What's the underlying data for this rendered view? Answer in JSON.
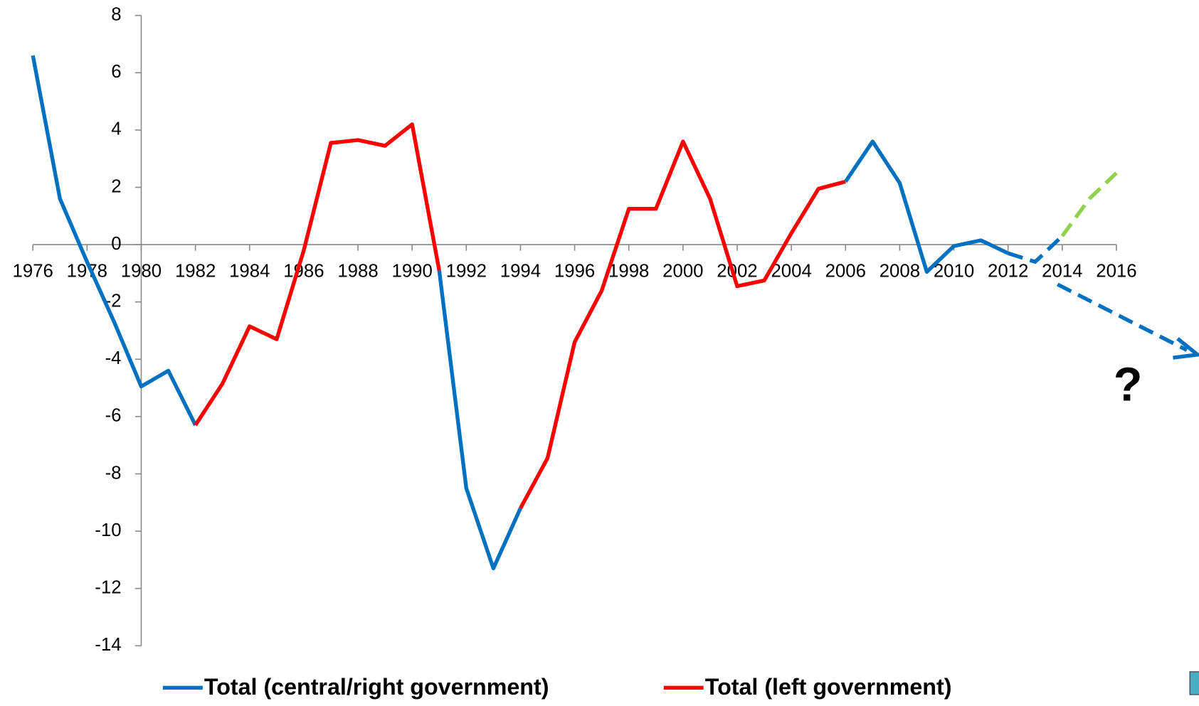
{
  "chart_data": {
    "type": "line",
    "x": [
      1976,
      1977,
      1978,
      1979,
      1980,
      1981,
      1982,
      1983,
      1984,
      1985,
      1986,
      1987,
      1988,
      1989,
      1990,
      1991,
      1992,
      1993,
      1994,
      1995,
      1996,
      1997,
      1998,
      1999,
      2000,
      2001,
      2002,
      2003,
      2004,
      2005,
      2006,
      2007,
      2008,
      2009,
      2010,
      2011,
      2012,
      2013,
      2014,
      2015,
      2016
    ],
    "series": [
      {
        "name": "Total (central/right government)",
        "color": "#0070c0",
        "values": [
          6.6,
          1.6,
          -0.6,
          -2.7,
          -4.95,
          -4.4,
          -6.3,
          null,
          null,
          null,
          null,
          null,
          null,
          null,
          null,
          -0.9,
          -8.5,
          -11.3,
          -9.2,
          null,
          null,
          null,
          null,
          null,
          null,
          null,
          null,
          null,
          null,
          null,
          2.2,
          3.6,
          2.15,
          -0.95,
          -0.05,
          0.15,
          -0.3,
          null,
          null,
          null,
          null
        ]
      },
      {
        "name": "Total (left government)",
        "color": "#ff0000",
        "values": [
          null,
          null,
          null,
          null,
          null,
          null,
          -6.3,
          -4.85,
          -2.85,
          -3.3,
          -0.2,
          3.55,
          3.65,
          3.45,
          4.2,
          -0.9,
          null,
          null,
          -9.2,
          -7.45,
          -3.4,
          -1.6,
          1.25,
          1.25,
          3.6,
          1.6,
          -1.45,
          -1.25,
          0.4,
          1.95,
          2.2,
          null,
          null,
          null,
          null,
          null,
          null,
          null,
          null,
          null,
          null
        ]
      }
    ],
    "dashed_series": [
      {
        "color": "#0070c0",
        "values": [
          null,
          null,
          null,
          null,
          null,
          null,
          null,
          null,
          null,
          null,
          null,
          null,
          null,
          null,
          null,
          null,
          null,
          null,
          null,
          null,
          null,
          null,
          null,
          null,
          null,
          null,
          null,
          null,
          null,
          null,
          null,
          null,
          null,
          null,
          null,
          null,
          -0.3,
          -0.6,
          0.3,
          null,
          null
        ]
      },
      {
        "color": "#92d050",
        "values": [
          null,
          null,
          null,
          null,
          null,
          null,
          null,
          null,
          null,
          null,
          null,
          null,
          null,
          null,
          null,
          null,
          null,
          null,
          null,
          null,
          null,
          null,
          null,
          null,
          null,
          null,
          null,
          null,
          null,
          null,
          null,
          null,
          null,
          null,
          null,
          null,
          null,
          null,
          0.3,
          1.6,
          2.5
        ]
      }
    ],
    "annotation": "?",
    "xlim": [
      1976,
      2016
    ],
    "xticks": [
      1976,
      1978,
      1980,
      1982,
      1984,
      1986,
      1988,
      1990,
      1992,
      1994,
      1996,
      1998,
      2000,
      2002,
      2004,
      2006,
      2008,
      2010,
      2012,
      2014,
      2016
    ],
    "ylim": [
      -14,
      8
    ],
    "yticks": [
      -14,
      -12,
      -10,
      -8,
      -6,
      -4,
      -2,
      0,
      2,
      4,
      6,
      8
    ],
    "y_axis_at": 1980,
    "legend": "bottom"
  }
}
